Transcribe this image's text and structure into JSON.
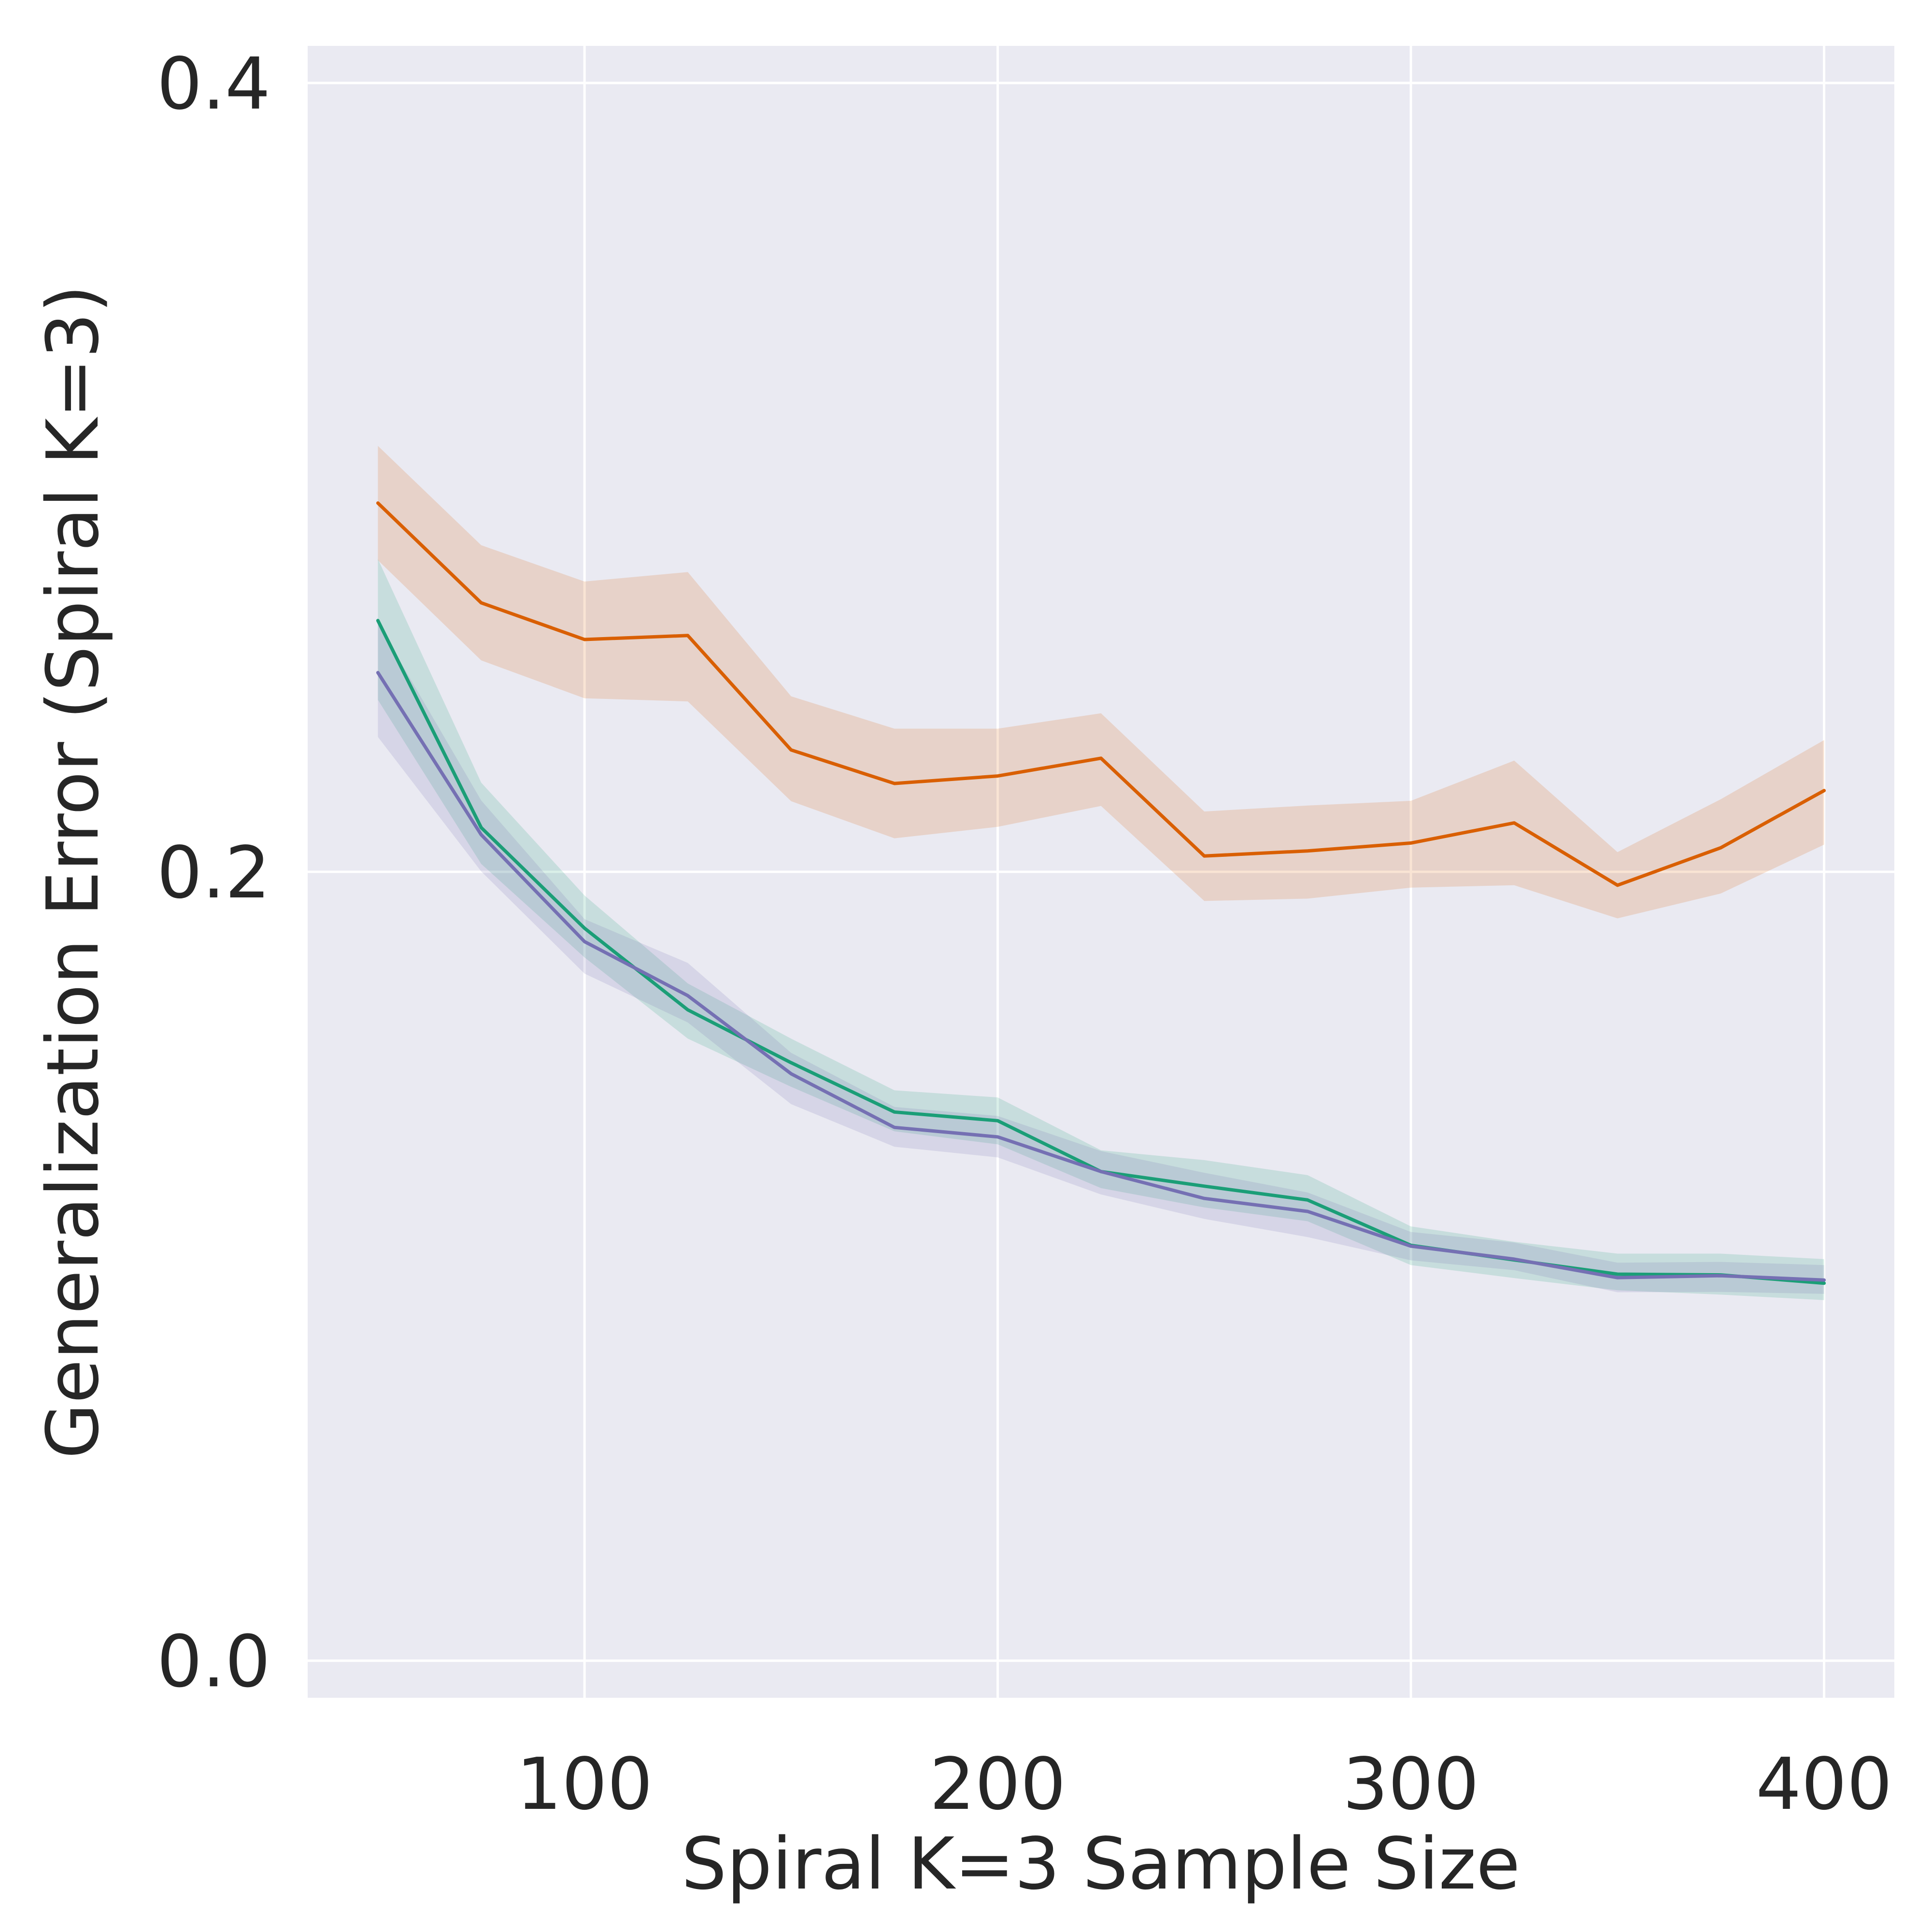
{
  "chart_data": {
    "type": "line",
    "title": "",
    "xlabel": "Spiral K=3 Sample Size",
    "ylabel": "Generalization Error (Spiral K=3)",
    "xlim": [
      33,
      417
    ],
    "ylim": [
      -0.0094,
      0.4094
    ],
    "xticks": [
      100,
      200,
      300,
      400
    ],
    "xtick_labels": [
      "100",
      "200",
      "300",
      "400"
    ],
    "yticks": [
      0.0,
      0.2,
      0.4
    ],
    "ytick_labels": [
      "0.0",
      "0.2",
      "0.4"
    ],
    "grid": true,
    "legend": "none",
    "x": [
      50,
      75,
      100,
      125,
      150,
      175,
      200,
      225,
      250,
      275,
      300,
      325,
      350,
      375,
      400
    ],
    "series": [
      {
        "color": "#d95f02",
        "values": [
          0.2935,
          0.2682,
          0.2589,
          0.2599,
          0.2309,
          0.2224,
          0.2243,
          0.2288,
          0.204,
          0.2053,
          0.2073,
          0.2124,
          0.1966,
          0.2061,
          0.2206
        ],
        "lower": [
          0.279,
          0.2536,
          0.244,
          0.2432,
          0.2179,
          0.2085,
          0.2114,
          0.2167,
          0.1926,
          0.1932,
          0.196,
          0.1966,
          0.1882,
          0.1945,
          0.2069
        ],
        "upper": [
          0.308,
          0.2828,
          0.2736,
          0.276,
          0.2445,
          0.2363,
          0.2363,
          0.2402,
          0.2153,
          0.2168,
          0.218,
          0.2282,
          0.205,
          0.2184,
          0.2334
        ]
      },
      {
        "color": "#1b9e77",
        "values": [
          0.2637,
          0.2112,
          0.1857,
          0.165,
          0.1516,
          0.1391,
          0.1369,
          0.124,
          0.1203,
          0.1168,
          0.1053,
          0.1016,
          0.098,
          0.0978,
          0.0957
        ],
        "lower": [
          0.2436,
          0.202,
          0.1783,
          0.1577,
          0.1455,
          0.1342,
          0.1309,
          0.1198,
          0.1149,
          0.1114,
          0.1003,
          0.097,
          0.0939,
          0.0928,
          0.0914
        ],
        "upper": [
          0.2793,
          0.2226,
          0.194,
          0.1717,
          0.1577,
          0.1446,
          0.1428,
          0.1294,
          0.1269,
          0.1231,
          0.1101,
          0.1062,
          0.1032,
          0.1032,
          0.1018
        ]
      },
      {
        "color": "#7570b3",
        "values": [
          0.2505,
          0.2094,
          0.1823,
          0.1686,
          0.1488,
          0.1352,
          0.1328,
          0.124,
          0.1172,
          0.1139,
          0.1051,
          0.1018,
          0.0971,
          0.0976,
          0.0965
        ],
        "lower": [
          0.2342,
          0.2001,
          0.1742,
          0.1618,
          0.1411,
          0.1303,
          0.1276,
          0.1182,
          0.112,
          0.1074,
          0.1015,
          0.099,
          0.0934,
          0.0935,
          0.093
        ],
        "upper": [
          0.263,
          0.2181,
          0.188,
          0.1769,
          0.1541,
          0.1404,
          0.1381,
          0.1292,
          0.1237,
          0.1187,
          0.1087,
          0.106,
          0.1009,
          0.1011,
          0.1003
        ]
      }
    ]
  }
}
